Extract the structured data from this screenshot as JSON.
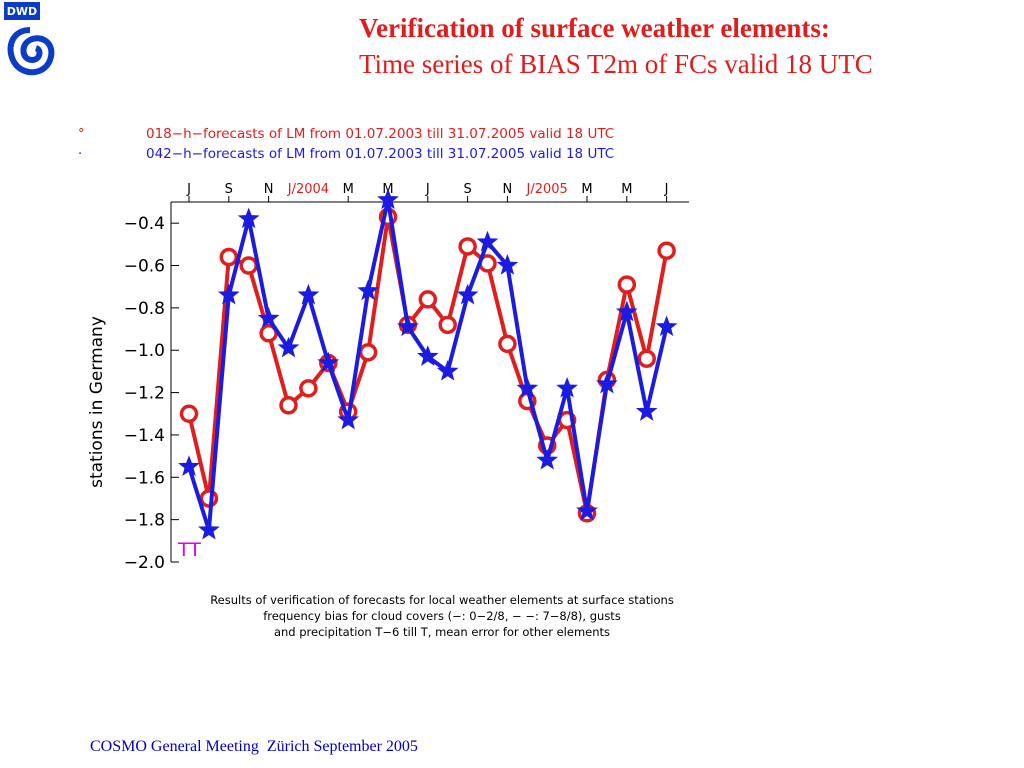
{
  "slide": {
    "title_line1": "Verification of surface weather elements:",
    "title_line2": "Time series of  BIAS T2m of FCs valid 18 UTC",
    "footer": "COSMO General Meeting  Zürich September 2005",
    "logo_text": "DWD"
  },
  "colors": {
    "title": "#e21b1b",
    "footer": "#0000c8",
    "series_red": "#e01e1e",
    "series_blue": "#1c1ce0",
    "tt_label": "#e000e0",
    "year_label": "#e01e1e"
  },
  "chart_data": {
    "type": "line",
    "ylabel": "stations  in  Germany",
    "ylim": [
      -2.0,
      -0.3
    ],
    "yticks": [
      -2.0,
      -1.8,
      -1.6,
      -1.4,
      -1.2,
      -1.0,
      -0.8,
      -0.6,
      -0.4
    ],
    "ytick_labels": [
      "−2.0",
      "−1.8",
      "−1.6",
      "−1.4",
      "−1.2",
      "−1.0",
      "−0.8",
      "−0.6",
      "−0.4"
    ],
    "month_ticks": [
      {
        "label": "J",
        "index": 0
      },
      {
        "label": "S",
        "index": 2
      },
      {
        "label": "N",
        "index": 4
      },
      {
        "label": "M",
        "index": 8
      },
      {
        "label": "M",
        "index": 10
      },
      {
        "label": "J",
        "index": 12
      },
      {
        "label": "S",
        "index": 14
      },
      {
        "label": "N",
        "index": 16
      },
      {
        "label": "M",
        "index": 20
      },
      {
        "label": "M",
        "index": 22
      },
      {
        "label": "J",
        "index": 24
      }
    ],
    "year_labels": [
      {
        "label": "J/2004",
        "index": 6
      },
      {
        "label": "J/2005",
        "index": 18
      }
    ],
    "legend": [
      {
        "symbol": "°",
        "text": "018−h−forecasts  of  LM  from  01.07.2003  till  31.07.2005  valid  18  UTC"
      },
      {
        "symbol": "·",
        "text": "042−h−forecasts  of  LM  from  01.07.2003  till  31.07.2005  valid  18  UTC"
      }
    ],
    "corner_label": "TT",
    "caption": [
      "Results  of  verification  of  forecasts  for  local  weather  elements  at  surface  stations",
      "frequency  bias  for  cloud  covers  (−:  0−2/8,  −  −:  7−8/8),  gusts",
      "and  precipitation  T−6  till  T,  mean  error  for  other  elements"
    ],
    "series": [
      {
        "marker": "circle",
        "values": [
          -1.3,
          -1.7,
          -0.56,
          -0.6,
          -0.92,
          -1.26,
          -1.18,
          -1.06,
          -1.29,
          -1.01,
          -0.37,
          -0.88,
          -0.76,
          -0.88,
          -0.51,
          -0.59,
          -0.97,
          -1.24,
          -1.45,
          -1.33,
          -1.77,
          -1.14,
          -0.69,
          -1.04,
          -0.53
        ]
      },
      {
        "marker": "star",
        "values": [
          -1.55,
          -1.85,
          -0.74,
          -0.38,
          -0.85,
          -0.99,
          -0.74,
          -1.06,
          -1.33,
          -0.72,
          -0.29,
          -0.89,
          -1.03,
          -1.1,
          -0.74,
          -0.49,
          -0.6,
          -1.18,
          -1.52,
          -1.18,
          -1.76,
          -1.16,
          -0.82,
          -1.29,
          -0.89
        ]
      }
    ]
  }
}
